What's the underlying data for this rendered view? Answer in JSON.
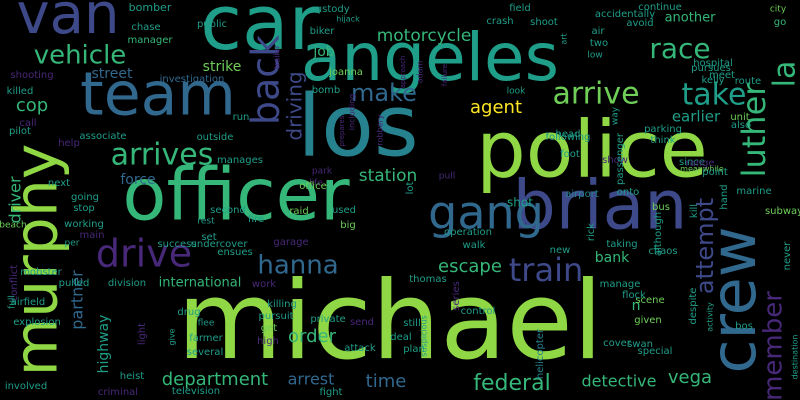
{
  "palette": {
    "purple": "#482878",
    "indigo": "#3e4989",
    "blue": "#31688e",
    "teal": "#26828e",
    "green": "#1f9e89",
    "mint": "#35b779",
    "lime": "#6ece58",
    "bright": "#8fd744",
    "yellow": "#fde725"
  },
  "words": [
    {
      "text": "michael",
      "color": "bright"
    },
    {
      "text": "officer",
      "color": "mint"
    },
    {
      "text": "police",
      "color": "bright"
    },
    {
      "text": "angeles",
      "color": "green"
    },
    {
      "text": "los",
      "color": "teal"
    },
    {
      "text": "car",
      "color": "green"
    },
    {
      "text": "team",
      "color": "blue"
    },
    {
      "text": "van",
      "color": "indigo"
    },
    {
      "text": "brian",
      "color": "indigo"
    },
    {
      "text": "murphy",
      "color": "bright"
    },
    {
      "text": "crew",
      "color": "blue"
    },
    {
      "text": "gang",
      "color": "blue"
    },
    {
      "text": "back",
      "color": "indigo"
    },
    {
      "text": "arrives",
      "color": "mint"
    },
    {
      "text": "drive",
      "color": "purple"
    },
    {
      "text": "train",
      "color": "indigo"
    },
    {
      "text": "hanna",
      "color": "blue"
    },
    {
      "text": "arrive",
      "color": "lime"
    },
    {
      "text": "take",
      "color": "green"
    },
    {
      "text": "make",
      "color": "blue"
    },
    {
      "text": "vehicle",
      "color": "mint"
    },
    {
      "text": "luther",
      "color": "mint"
    },
    {
      "text": "race",
      "color": "mint"
    },
    {
      "text": "la",
      "color": "mint"
    },
    {
      "text": "member",
      "color": "purple"
    },
    {
      "text": "attempt",
      "color": "indigo"
    },
    {
      "text": "federal",
      "color": "mint"
    },
    {
      "text": "department",
      "color": "mint"
    },
    {
      "text": "driving",
      "color": "indigo"
    },
    {
      "text": "agent",
      "color": "yellow"
    },
    {
      "text": "motorcycle",
      "color": "mint"
    },
    {
      "text": "escape",
      "color": "mint"
    },
    {
      "text": "station",
      "color": "mint"
    },
    {
      "text": "partner",
      "color": "blue"
    },
    {
      "text": "highway",
      "color": "green"
    },
    {
      "text": "vega",
      "color": "mint"
    },
    {
      "text": "detective",
      "color": "mint"
    },
    {
      "text": "force",
      "color": "blue"
    },
    {
      "text": "cop",
      "color": "mint"
    },
    {
      "text": "driver",
      "color": "mint"
    },
    {
      "text": "arrest",
      "color": "blue"
    },
    {
      "text": "time",
      "color": "blue"
    },
    {
      "text": "bank",
      "color": "mint"
    },
    {
      "text": "order",
      "color": "mint"
    },
    {
      "text": "earlier",
      "color": "green"
    },
    {
      "text": "street",
      "color": "blue"
    },
    {
      "text": "strike",
      "color": "lime"
    },
    {
      "text": "job",
      "color": "mint"
    },
    {
      "text": "another",
      "color": "mint"
    },
    {
      "text": "n",
      "color": "mint"
    },
    {
      "text": "international",
      "color": "mint"
    },
    {
      "text": "helicopter",
      "color": "teal"
    },
    {
      "text": "bomber",
      "color": "green"
    },
    {
      "text": "chase",
      "color": "green"
    },
    {
      "text": "public",
      "color": "green"
    },
    {
      "text": "manager",
      "color": "mint"
    },
    {
      "text": "custody",
      "color": "green"
    },
    {
      "text": "biker",
      "color": "green"
    },
    {
      "text": "hijack",
      "color": "green"
    },
    {
      "text": "field",
      "color": "green"
    },
    {
      "text": "crash",
      "color": "green"
    },
    {
      "text": "shoot",
      "color": "green"
    },
    {
      "text": "accidentally",
      "color": "green"
    },
    {
      "text": "avoid",
      "color": "green"
    },
    {
      "text": "continue",
      "color": "green"
    },
    {
      "text": "city",
      "color": "lime"
    },
    {
      "text": "go",
      "color": "mint"
    },
    {
      "text": "air",
      "color": "green"
    },
    {
      "text": "two",
      "color": "green"
    },
    {
      "text": "low",
      "color": "green"
    },
    {
      "text": "pursues",
      "color": "green"
    },
    {
      "text": "kelly",
      "color": "green"
    },
    {
      "text": "hospital",
      "color": "green"
    },
    {
      "text": "meet",
      "color": "green"
    },
    {
      "text": "route",
      "color": "green"
    },
    {
      "text": "shooting",
      "color": "purple"
    },
    {
      "text": "killed",
      "color": "green"
    },
    {
      "text": "investigation",
      "color": "blue"
    },
    {
      "text": "joanna",
      "color": "lime"
    },
    {
      "text": "bomb",
      "color": "green"
    },
    {
      "text": "look",
      "color": "green"
    },
    {
      "text": "prepares",
      "color": "purple"
    },
    {
      "text": "approach",
      "color": "purple"
    },
    {
      "text": "adam",
      "color": "purple"
    },
    {
      "text": "failure",
      "color": "purple"
    },
    {
      "text": "including",
      "color": "purple"
    },
    {
      "text": "robbery",
      "color": "purple"
    },
    {
      "text": "following",
      "color": "green"
    },
    {
      "text": "head",
      "color": "green"
    },
    {
      "text": "unit",
      "color": "lime"
    },
    {
      "text": "also",
      "color": "green"
    },
    {
      "text": "pilot",
      "color": "green"
    },
    {
      "text": "call",
      "color": "purple"
    },
    {
      "text": "help",
      "color": "purple"
    },
    {
      "text": "associate",
      "color": "green"
    },
    {
      "text": "outside",
      "color": "green"
    },
    {
      "text": "run",
      "color": "green"
    },
    {
      "text": "manages",
      "color": "green"
    },
    {
      "text": "park",
      "color": "purple"
    },
    {
      "text": "life",
      "color": "purple"
    },
    {
      "text": "office",
      "color": "lime"
    },
    {
      "text": "pull",
      "color": "purple"
    },
    {
      "text": "foot",
      "color": "green"
    },
    {
      "text": "show",
      "color": "purple"
    },
    {
      "text": "passenger",
      "color": "green"
    },
    {
      "text": "parking",
      "color": "green"
    },
    {
      "text": "since",
      "color": "green"
    },
    {
      "text": "range",
      "color": "purple"
    },
    {
      "text": "meanwhile",
      "color": "lime"
    },
    {
      "text": "point",
      "color": "green"
    },
    {
      "text": "marine",
      "color": "green"
    },
    {
      "text": "next",
      "color": "green"
    },
    {
      "text": "going",
      "color": "green"
    },
    {
      "text": "stop",
      "color": "green"
    },
    {
      "text": "working",
      "color": "green"
    },
    {
      "text": "main",
      "color": "purple"
    },
    {
      "text": "per",
      "color": "green"
    },
    {
      "text": "beach",
      "color": "lime"
    },
    {
      "text": "second",
      "color": "green"
    },
    {
      "text": "fire",
      "color": "green"
    },
    {
      "text": "raid",
      "color": "lime"
    },
    {
      "text": "used",
      "color": "green"
    },
    {
      "text": "big",
      "color": "lime"
    },
    {
      "text": "shot",
      "color": "green"
    },
    {
      "text": "airport",
      "color": "teal"
    },
    {
      "text": "onto",
      "color": "green"
    },
    {
      "text": "bus",
      "color": "lime"
    },
    {
      "text": "subway",
      "color": "lime"
    },
    {
      "text": "rest",
      "color": "green"
    },
    {
      "text": "set",
      "color": "green"
    },
    {
      "text": "undercover",
      "color": "green"
    },
    {
      "text": "operation",
      "color": "green"
    },
    {
      "text": "walk",
      "color": "green"
    },
    {
      "text": "taking",
      "color": "green"
    },
    {
      "text": "chaos",
      "color": "green"
    },
    {
      "text": "success",
      "color": "green"
    },
    {
      "text": "ensues",
      "color": "green"
    },
    {
      "text": "garage",
      "color": "purple"
    },
    {
      "text": "mobster",
      "color": "green"
    },
    {
      "text": "conflict",
      "color": "purple"
    },
    {
      "text": "airfield",
      "color": "green"
    },
    {
      "text": "full",
      "color": "green"
    },
    {
      "text": "explosion",
      "color": "green"
    },
    {
      "text": "involved",
      "color": "green"
    },
    {
      "text": "pulled",
      "color": "green"
    },
    {
      "text": "division",
      "color": "green"
    },
    {
      "text": "heist",
      "color": "green"
    },
    {
      "text": "criminal",
      "color": "purple"
    },
    {
      "text": "light",
      "color": "purple"
    },
    {
      "text": "flee",
      "color": "green"
    },
    {
      "text": "farmer",
      "color": "green"
    },
    {
      "text": "several",
      "color": "green"
    },
    {
      "text": "television",
      "color": "green"
    },
    {
      "text": "fight",
      "color": "green"
    },
    {
      "text": "work",
      "color": "purple"
    },
    {
      "text": "killing",
      "color": "green"
    },
    {
      "text": "pursuit",
      "color": "green"
    },
    {
      "text": "private",
      "color": "green"
    },
    {
      "text": "send",
      "color": "purple"
    },
    {
      "text": "deal",
      "color": "green"
    },
    {
      "text": "attack",
      "color": "green"
    },
    {
      "text": "plan",
      "color": "green"
    },
    {
      "text": "still",
      "color": "green"
    },
    {
      "text": "suspicious",
      "color": "green"
    },
    {
      "text": "control",
      "color": "green"
    },
    {
      "text": "series",
      "color": "purple"
    },
    {
      "text": "thomas",
      "color": "green"
    },
    {
      "text": "drug",
      "color": "green"
    },
    {
      "text": "get",
      "color": "lime"
    },
    {
      "text": "give",
      "color": "green"
    },
    {
      "text": "high",
      "color": "purple"
    },
    {
      "text": "manage",
      "color": "green"
    },
    {
      "text": "scene",
      "color": "lime"
    },
    {
      "text": "flock",
      "color": "green"
    },
    {
      "text": "given",
      "color": "lime"
    },
    {
      "text": "swan",
      "color": "green"
    },
    {
      "text": "special",
      "color": "green"
    },
    {
      "text": "cover",
      "color": "green"
    },
    {
      "text": "bos",
      "color": "green"
    },
    {
      "text": "despite",
      "color": "green"
    },
    {
      "text": "activity",
      "color": "green"
    },
    {
      "text": "destination",
      "color": "green"
    },
    {
      "text": "never",
      "color": "green"
    },
    {
      "text": "hand",
      "color": "green"
    },
    {
      "text": "art",
      "color": "green"
    },
    {
      "text": "way",
      "color": "green"
    },
    {
      "text": "think",
      "color": "green"
    },
    {
      "text": "trailer",
      "color": "purple"
    },
    {
      "text": "rick",
      "color": "green"
    },
    {
      "text": "lot",
      "color": "green"
    },
    {
      "text": "although",
      "color": "green"
    },
    {
      "text": "kill",
      "color": "green"
    },
    {
      "text": "new",
      "color": "green"
    }
  ]
}
